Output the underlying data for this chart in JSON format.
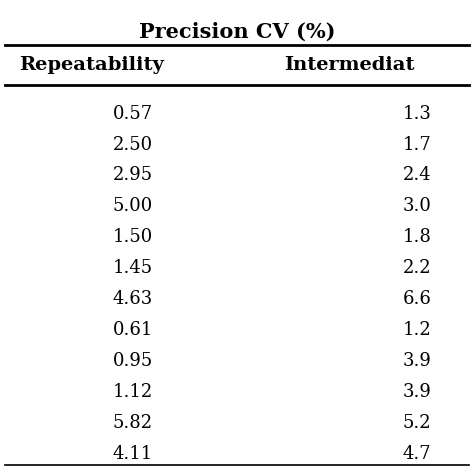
{
  "title": "Precision CV (%)",
  "col1_header": "Repeatability",
  "col2_header": "Intermediat",
  "repeatability": [
    "0.57",
    "2.50",
    "2.95",
    "5.00",
    "1.50",
    "1.45",
    "4.63",
    "0.61",
    "0.95",
    "1.12",
    "5.82",
    "4.11"
  ],
  "intermediate": [
    "1.3",
    "1.7",
    "2.4",
    "3.0",
    "1.8",
    "2.2",
    "6.6",
    "1.2",
    "3.9",
    "3.9",
    "5.2",
    "4.7"
  ],
  "background_color": "#ffffff",
  "text_color": "#000000",
  "title_fontsize": 15,
  "header_fontsize": 14,
  "data_fontsize": 13
}
